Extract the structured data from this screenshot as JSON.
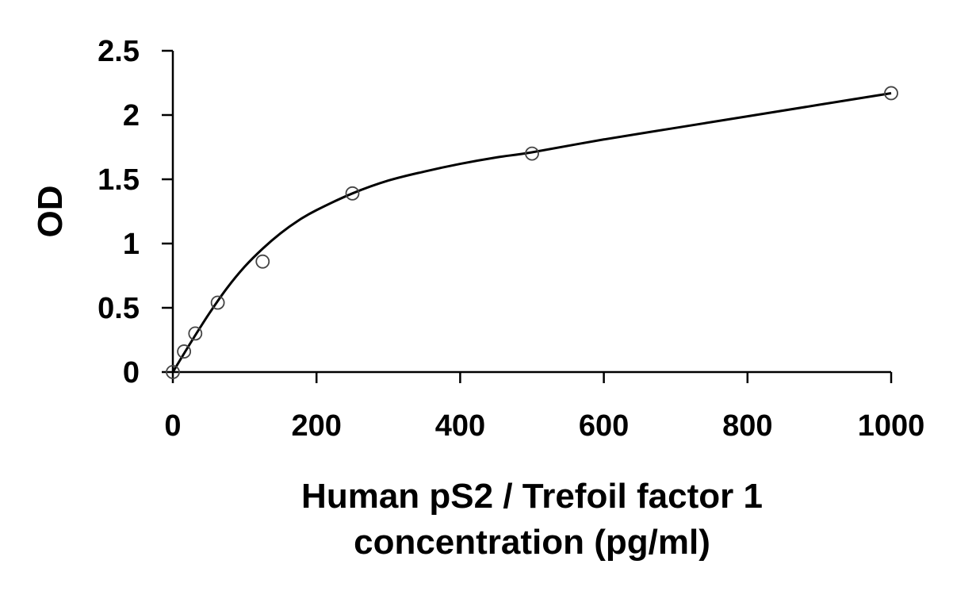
{
  "chart_data": {
    "type": "scatter",
    "xlabel_lines": [
      "Human pS2 / Trefoil factor 1",
      "concentration (pg/ml)"
    ],
    "ylabel": "OD",
    "xlim": [
      0,
      1000
    ],
    "ylim": [
      0,
      2.5
    ],
    "x_ticks": [
      0,
      200,
      400,
      600,
      800,
      1000
    ],
    "x_tick_labels": [
      "0",
      "200",
      "400",
      "600",
      "800",
      "1000"
    ],
    "y_ticks": [
      0,
      0.5,
      1,
      1.5,
      2,
      2.5
    ],
    "y_tick_labels": [
      "0",
      "0.5",
      "1",
      "1.5",
      "2",
      "2.5"
    ],
    "grid": false,
    "points": {
      "x": [
        0,
        15.6,
        31.25,
        62.5,
        125,
        250,
        500,
        1000
      ],
      "y": [
        0.0,
        0.16,
        0.3,
        0.54,
        0.86,
        1.39,
        1.7,
        2.17
      ]
    },
    "fit_curve": {
      "x": [
        0,
        25,
        50,
        75,
        100,
        125,
        150,
        175,
        200,
        250,
        300,
        350,
        400,
        450,
        500,
        600,
        700,
        800,
        900,
        1000
      ],
      "y": [
        0.0,
        0.23,
        0.45,
        0.65,
        0.82,
        0.96,
        1.08,
        1.18,
        1.26,
        1.39,
        1.49,
        1.56,
        1.62,
        1.67,
        1.71,
        1.81,
        1.9,
        1.99,
        2.08,
        2.17
      ]
    },
    "colors": {
      "axis": "#000000",
      "marker": "#444444",
      "curve": "#000000"
    }
  }
}
